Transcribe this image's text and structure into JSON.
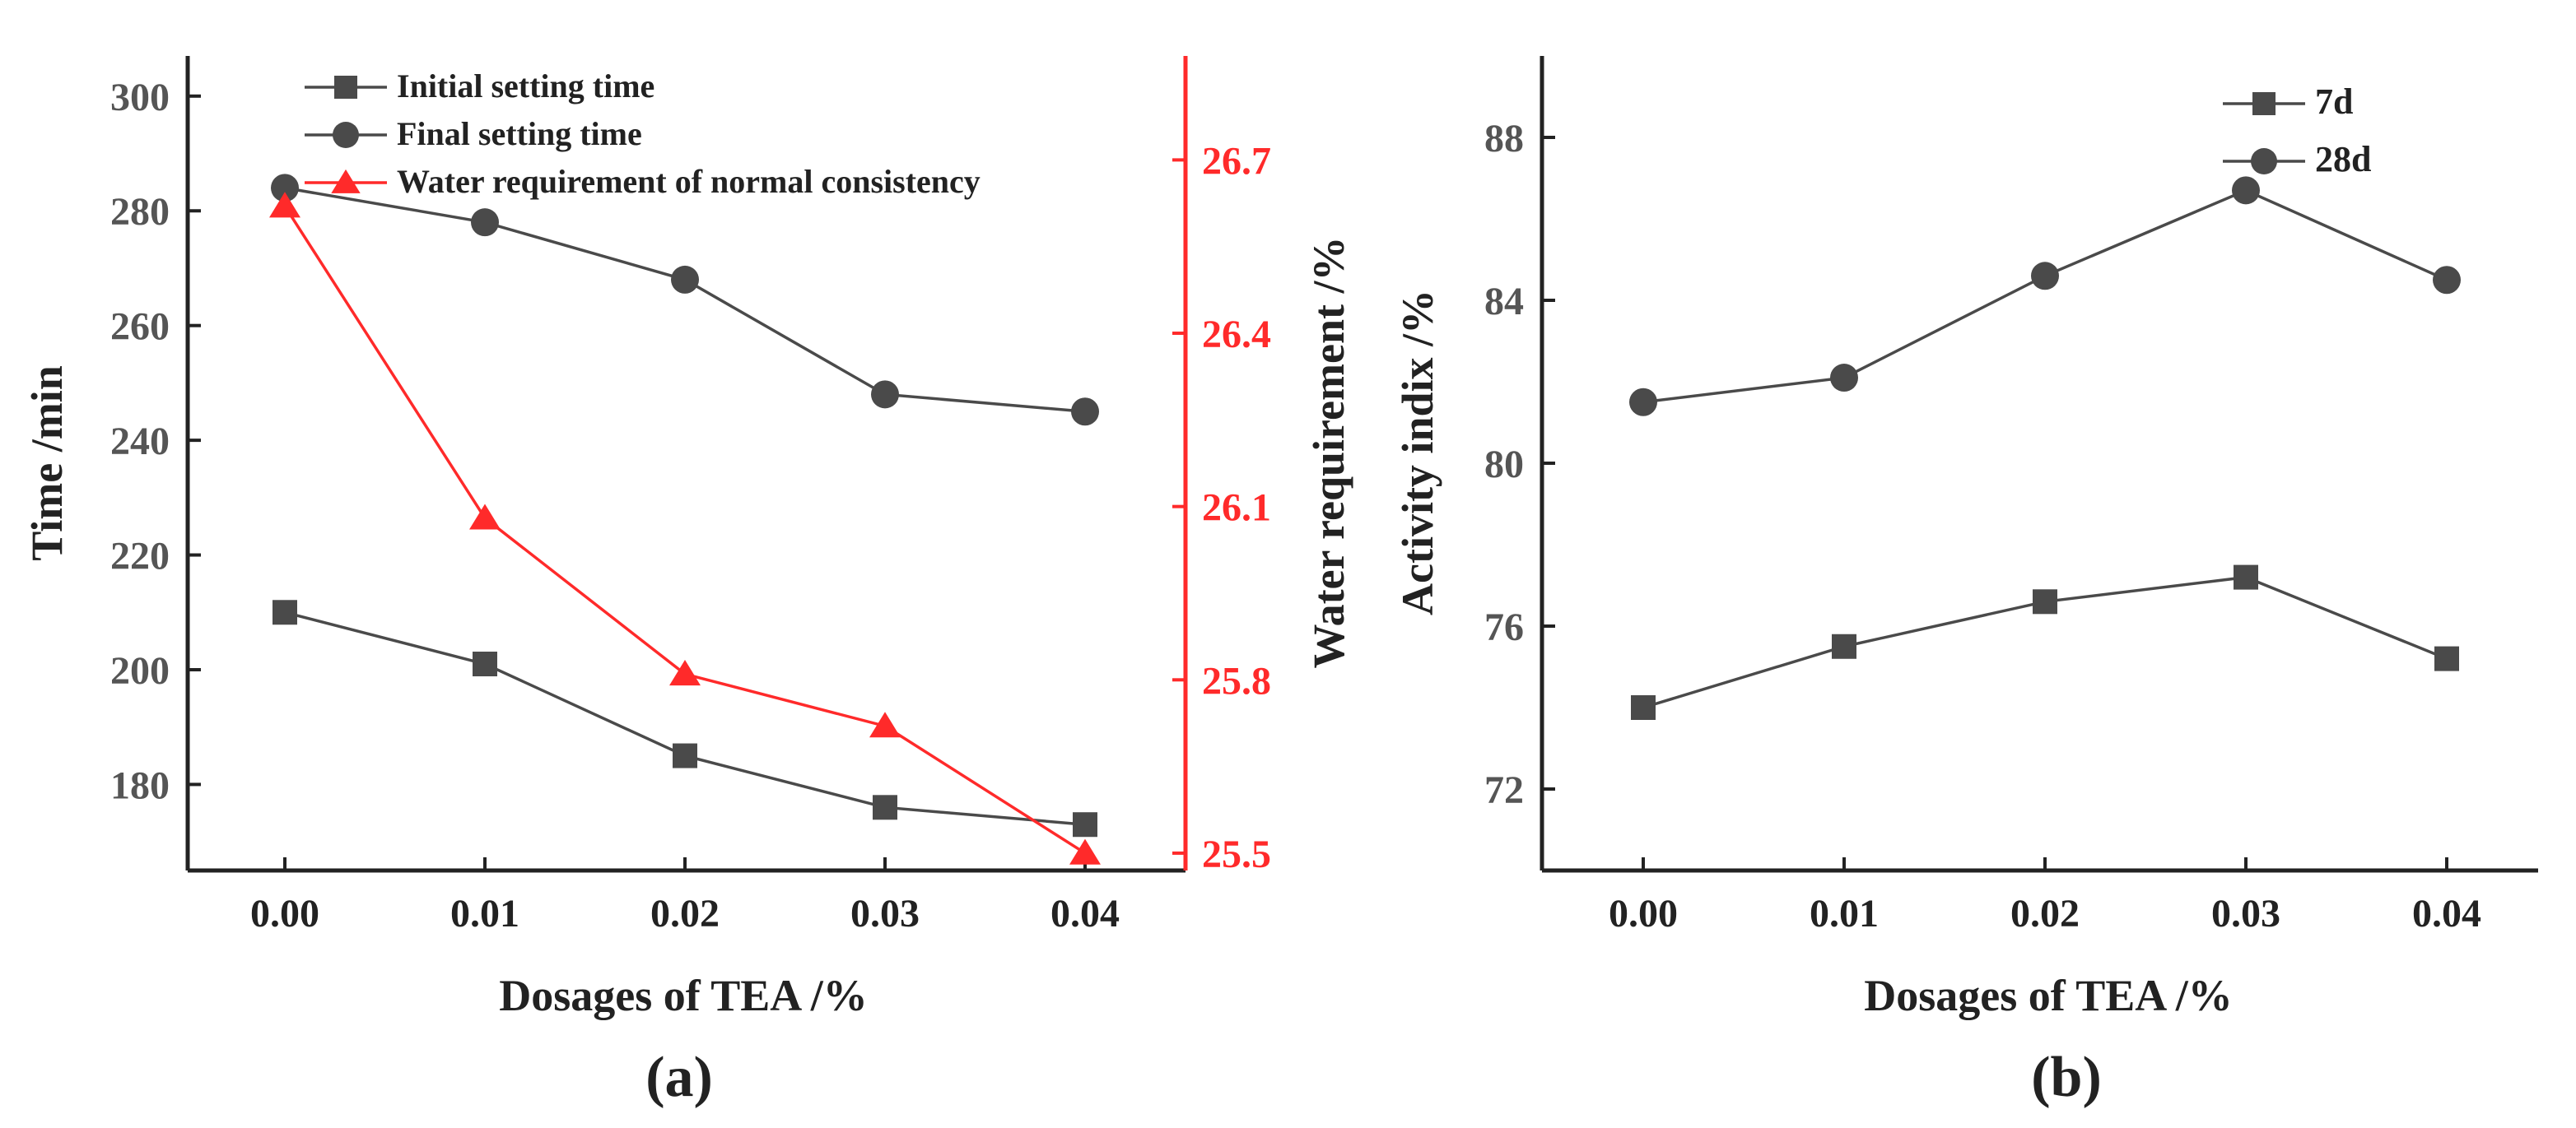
{
  "colors": {
    "gray": "#4a4a4a",
    "red": "#ff2a2a",
    "axis": "#222222"
  },
  "chart_data": [
    {
      "id": "a",
      "type": "line",
      "caption": "(a)",
      "xlabel": "Dosages of TEA /%",
      "ylabel": "Time /min",
      "y2label": "Water requirement /%",
      "categories": [
        "0.00",
        "0.01",
        "0.02",
        "0.03",
        "0.04"
      ],
      "ylim": [
        165,
        307
      ],
      "yticks": [
        180,
        200,
        220,
        240,
        260,
        280,
        300
      ],
      "y2lim": [
        25.47,
        26.88
      ],
      "y2ticks": [
        25.5,
        25.8,
        26.1,
        26.4,
        26.7
      ],
      "legend_position": "top-right",
      "series": [
        {
          "name": "Initial setting time",
          "axis": "left",
          "marker": "square",
          "color": "#4a4a4a",
          "values": [
            210,
            201,
            185,
            176,
            173
          ]
        },
        {
          "name": "Final setting time",
          "axis": "left",
          "marker": "circle",
          "color": "#4a4a4a",
          "values": [
            284,
            278,
            268,
            248,
            245
          ]
        },
        {
          "name": "Water requirement of normal consistency",
          "axis": "right",
          "marker": "triangle",
          "color": "#ff2a2a",
          "values": [
            26.62,
            26.08,
            25.81,
            25.72,
            25.5
          ]
        }
      ]
    },
    {
      "id": "b",
      "type": "line",
      "caption": "(b)",
      "xlabel": "Dosages of TEA /%",
      "ylabel": "Activity indix /%",
      "categories": [
        "0.00",
        "0.01",
        "0.02",
        "0.03",
        "0.04"
      ],
      "ylim": [
        70,
        90
      ],
      "yticks": [
        72,
        76,
        80,
        84,
        88
      ],
      "legend_position": "top-right",
      "series": [
        {
          "name": "7d",
          "marker": "square",
          "color": "#4a4a4a",
          "values": [
            74.0,
            75.5,
            76.6,
            77.2,
            75.2
          ]
        },
        {
          "name": "28d",
          "marker": "circle",
          "color": "#4a4a4a",
          "values": [
            81.5,
            82.1,
            84.6,
            86.7,
            84.5
          ]
        }
      ]
    }
  ]
}
